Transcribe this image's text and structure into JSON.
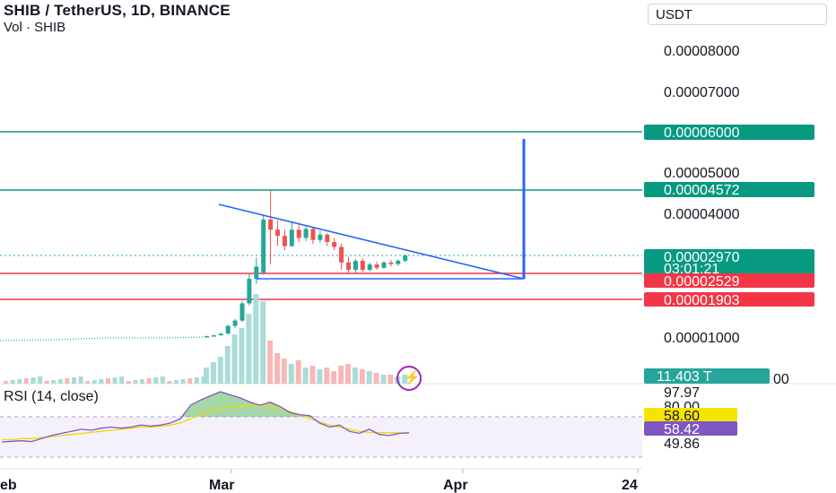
{
  "header": {
    "title": "SHIB / TetherUS, 1D, BINANCE",
    "volume_label": "Vol · SHIB",
    "currency": "USDT"
  },
  "price_axis": {
    "ticks": [
      "0.00008000",
      "0.00007000",
      "0.00005000",
      "0.00004000",
      "0.00001000"
    ]
  },
  "tags": {
    "target_high": "0.00006000",
    "resistance": "0.00004572",
    "last_price": "0.00002970",
    "countdown": "03:01:21",
    "support_high": "0.00002529",
    "support_low": "0.00001903",
    "volume": "11.403 T",
    "partial_hidden": "00"
  },
  "rsi": {
    "title": "RSI (14, close)",
    "axis_top": "97.97",
    "axis_partial": "80.00",
    "rsi_value": "58.60",
    "ma_value": "58.42",
    "axis_bottom": "49.86"
  },
  "time_axis": {
    "labels": [
      "eb",
      "Mar",
      "Apr",
      "24"
    ]
  },
  "colors": {
    "up": "#26a69a",
    "down": "#ef5350",
    "pattern": "#2962ff",
    "rsi": "#7e57c2",
    "rsi_ma": "#f5d600",
    "green_line": "#089981",
    "red_line": "#f23645"
  },
  "chart_data": {
    "type": "candlestick",
    "symbol": "SHIB / TetherUS",
    "interval": "1D",
    "exchange": "BINANCE",
    "pre_move_close_range": [
      9.7e-06,
      9.9e-06
    ],
    "candles_from_late_feb": [
      {
        "o": 9.9e-06,
        "h": 1.01e-05,
        "l": 9.8e-06,
        "c": 1e-05
      },
      {
        "o": 1e-05,
        "h": 1.03e-05,
        "l": 9.9e-06,
        "c": 1.02e-05
      },
      {
        "o": 1.02e-05,
        "h": 1.08e-05,
        "l": 1.01e-05,
        "c": 1.06e-05
      },
      {
        "o": 1.06e-05,
        "h": 1.28e-05,
        "l": 1.05e-05,
        "c": 1.25e-05
      },
      {
        "o": 1.25e-05,
        "h": 1.42e-05,
        "l": 1.2e-05,
        "c": 1.38e-05
      },
      {
        "o": 1.38e-05,
        "h": 1.85e-05,
        "l": 1.35e-05,
        "c": 1.8e-05
      },
      {
        "o": 1.8e-05,
        "h": 2.52e-05,
        "l": 1.75e-05,
        "c": 2.4e-05
      },
      {
        "o": 2.4e-05,
        "h": 2.92e-05,
        "l": 2.28e-05,
        "c": 2.7e-05
      },
      {
        "o": 2.55e-05,
        "h": 3.95e-05,
        "l": 2.5e-05,
        "c": 3.85e-05
      },
      {
        "o": 3.85e-05,
        "h": 4.56e-05,
        "l": 2.75e-05,
        "c": 3.6e-05
      },
      {
        "o": 3.6e-05,
        "h": 3.82e-05,
        "l": 3.2e-05,
        "c": 3.45e-05
      },
      {
        "o": 3.45e-05,
        "h": 3.6e-05,
        "l": 3.1e-05,
        "c": 3.2e-05
      },
      {
        "o": 3.2e-05,
        "h": 3.78e-05,
        "l": 3.18e-05,
        "c": 3.6e-05
      },
      {
        "o": 3.6e-05,
        "h": 3.72e-05,
        "l": 3.3e-05,
        "c": 3.4e-05
      },
      {
        "o": 3.4e-05,
        "h": 3.68e-05,
        "l": 3.32e-05,
        "c": 3.62e-05
      },
      {
        "o": 3.62e-05,
        "h": 3.66e-05,
        "l": 3.25e-05,
        "c": 3.35e-05
      },
      {
        "o": 3.35e-05,
        "h": 3.58e-05,
        "l": 3.28e-05,
        "c": 3.48e-05
      },
      {
        "o": 3.48e-05,
        "h": 3.52e-05,
        "l": 3.2e-05,
        "c": 3.3e-05
      },
      {
        "o": 3.3e-05,
        "h": 3.4e-05,
        "l": 3.1e-05,
        "c": 3.18e-05
      },
      {
        "o": 3.18e-05,
        "h": 3.26e-05,
        "l": 2.62e-05,
        "c": 2.8e-05
      },
      {
        "o": 2.8e-05,
        "h": 2.94e-05,
        "l": 2.55e-05,
        "c": 2.62e-05
      },
      {
        "o": 2.62e-05,
        "h": 2.88e-05,
        "l": 2.54e-05,
        "c": 2.84e-05
      },
      {
        "o": 2.84e-05,
        "h": 2.9e-05,
        "l": 2.56e-05,
        "c": 2.62e-05
      },
      {
        "o": 2.62e-05,
        "h": 2.8e-05,
        "l": 2.58e-05,
        "c": 2.75e-05
      },
      {
        "o": 2.75e-05,
        "h": 2.82e-05,
        "l": 2.62e-05,
        "c": 2.67e-05
      },
      {
        "o": 2.67e-05,
        "h": 2.84e-05,
        "l": 2.65e-05,
        "c": 2.8e-05
      },
      {
        "o": 2.8e-05,
        "h": 2.86e-05,
        "l": 2.7e-05,
        "c": 2.76e-05
      },
      {
        "o": 2.76e-05,
        "h": 2.88e-05,
        "l": 2.72e-05,
        "c": 2.84e-05
      },
      {
        "o": 2.84e-05,
        "h": 3e-05,
        "l": 2.8e-05,
        "c": 2.97e-05
      }
    ],
    "horizontal_levels": [
      6e-05,
      4.572e-05,
      2.529e-05,
      1.903e-05
    ],
    "last_price": 2.97e-05,
    "rsi_series": [
      49.8,
      50.5,
      51,
      50.2,
      53,
      56,
      58,
      60,
      62,
      61,
      63,
      64,
      63,
      64,
      66,
      65,
      66,
      68,
      72,
      85,
      90,
      94,
      97.97,
      95,
      92,
      88,
      85,
      88,
      84,
      78,
      76,
      75,
      68,
      64,
      66,
      60,
      58,
      62,
      57,
      56,
      58,
      58.6
    ],
    "rsi_ma_series": [
      52,
      52,
      53,
      53,
      54,
      55,
      56,
      57,
      58,
      59,
      60,
      61,
      62,
      63,
      64,
      64,
      65,
      66,
      68,
      72,
      76,
      80,
      82,
      83,
      84,
      85,
      85,
      84,
      82,
      79,
      76,
      72,
      69,
      66,
      64,
      62,
      60,
      59,
      58.8,
      58.6,
      58.5,
      58.42
    ]
  }
}
